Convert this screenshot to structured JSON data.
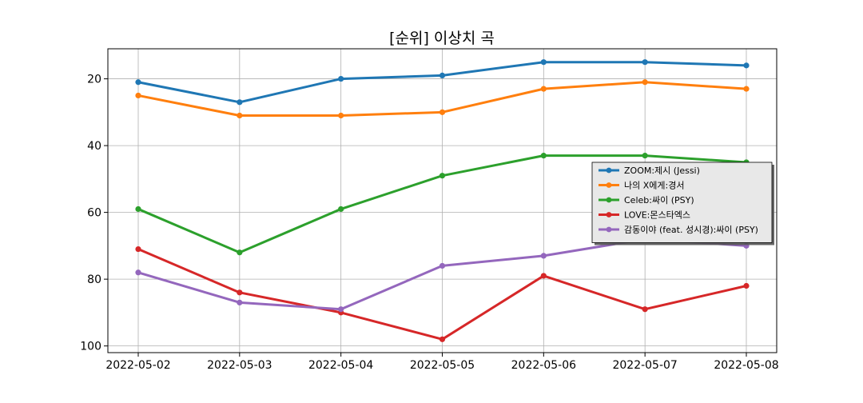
{
  "chart_data": {
    "type": "line",
    "title": "[순위] 이상치 곡",
    "xlabel": "",
    "ylabel": "",
    "x": [
      "2022-05-02",
      "2022-05-03",
      "2022-05-04",
      "2022-05-05",
      "2022-05-06",
      "2022-05-07",
      "2022-05-08"
    ],
    "ylim": [
      102,
      11
    ],
    "y_inverted": true,
    "yticks": [
      20,
      40,
      60,
      80,
      100
    ],
    "grid": true,
    "legend_position": "center-right",
    "series": [
      {
        "name": "ZOOM:제시 (Jessi)",
        "color": "#1f77b4",
        "values": [
          21,
          27,
          20,
          19,
          15,
          15,
          16
        ]
      },
      {
        "name": "나의 X에게:경서",
        "color": "#ff7f0e",
        "values": [
          25,
          31,
          31,
          30,
          23,
          21,
          23
        ]
      },
      {
        "name": "Celeb:싸이 (PSY)",
        "color": "#2ca02c",
        "values": [
          59,
          72,
          59,
          49,
          43,
          43,
          45
        ]
      },
      {
        "name": "LOVE:몬스타엑스",
        "color": "#d62728",
        "values": [
          71,
          84,
          90,
          98,
          79,
          89,
          82
        ]
      },
      {
        "name": "감동이야 (feat. 성시경):싸이 (PSY)",
        "color": "#9467bd",
        "values": [
          78,
          87,
          89,
          76,
          73,
          68,
          70
        ]
      }
    ]
  }
}
